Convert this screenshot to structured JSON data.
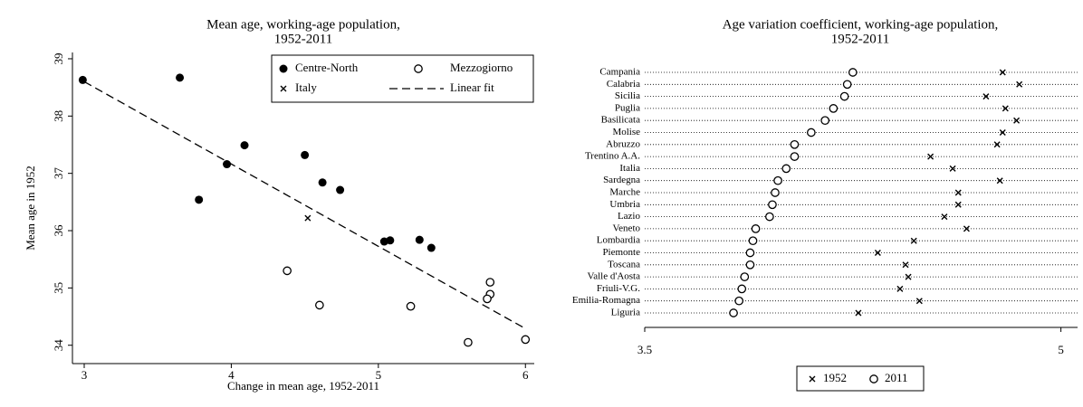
{
  "chart_data": [
    {
      "type": "scatter",
      "title": [
        "Mean age, working-age population,",
        "1952-2011"
      ],
      "x_label": "Change in mean age, 1952-2011",
      "y_label": "Mean age in 1952",
      "xlim": [
        2.92,
        6.06
      ],
      "xticks": [
        3,
        4,
        5,
        6
      ],
      "ylim": [
        33.68,
        39.11
      ],
      "yticks": [
        34,
        35,
        36,
        37,
        38,
        39
      ],
      "legend": "top-right",
      "series": [
        {
          "name": "Centre-North",
          "color": "#000000",
          "marker": "filled-circle",
          "x": [
            2.99,
            3.65,
            3.78,
            3.97,
            4.09,
            4.5,
            4.62,
            4.74,
            5.04,
            5.08,
            5.28,
            5.36
          ],
          "values": [
            38.63,
            38.67,
            36.54,
            37.16,
            37.49,
            37.32,
            36.84,
            36.71,
            35.81,
            35.83,
            35.84,
            35.7
          ]
        },
        {
          "name": "Mezzogiorno",
          "color": "#000000",
          "marker": "hollow-circle",
          "x": [
            4.38,
            4.6,
            5.22,
            5.61,
            5.76,
            5.76,
            5.74,
            6.0
          ],
          "values": [
            35.3,
            34.7,
            34.68,
            34.05,
            35.1,
            34.89,
            34.81,
            34.1
          ]
        },
        {
          "name": "Italy",
          "color": "#000000",
          "marker": "cross",
          "x": [
            4.52
          ],
          "values": [
            36.22
          ]
        },
        {
          "name": "Linear fit",
          "color": "#000000",
          "marker": "dashed-line",
          "x": [
            3,
            6
          ],
          "values": [
            38.6,
            34.29
          ]
        }
      ]
    },
    {
      "type": "dot",
      "title": [
        "Age variation coefficient, working-age population,",
        "1952-2011"
      ],
      "xlim": [
        3.5,
        5.06
      ],
      "xticks": [
        3.5,
        5
      ],
      "legend": "bottom",
      "categories": [
        "Campania",
        "Calabria",
        "Sicilia",
        "Puglia",
        "Basilicata",
        "Molise",
        "Abruzzo",
        "Trentino A.A.",
        "Italia",
        "Sardegna",
        "Marche",
        "Umbria",
        "Lazio",
        "Veneto",
        "Lombardia",
        "Piemonte",
        "Toscana",
        "Valle d'Aosta",
        "Friuli-V.G.",
        "Emilia-Romagna",
        "Liguria"
      ],
      "series": [
        {
          "name": "1952",
          "color": "#000000",
          "marker": "cross",
          "values": [
            4.79,
            4.85,
            4.73,
            4.8,
            4.84,
            4.79,
            4.77,
            4.53,
            4.61,
            4.78,
            4.63,
            4.63,
            4.58,
            4.66,
            4.47,
            4.34,
            4.44,
            4.45,
            4.42,
            4.49,
            4.27
          ]
        },
        {
          "name": "2011",
          "color": "#000000",
          "marker": "hollow-circle",
          "values": [
            4.25,
            4.23,
            4.22,
            4.18,
            4.15,
            4.1,
            4.04,
            4.04,
            4.01,
            3.98,
            3.97,
            3.96,
            3.95,
            3.9,
            3.89,
            3.88,
            3.88,
            3.86,
            3.85,
            3.84,
            3.82
          ]
        }
      ]
    }
  ]
}
